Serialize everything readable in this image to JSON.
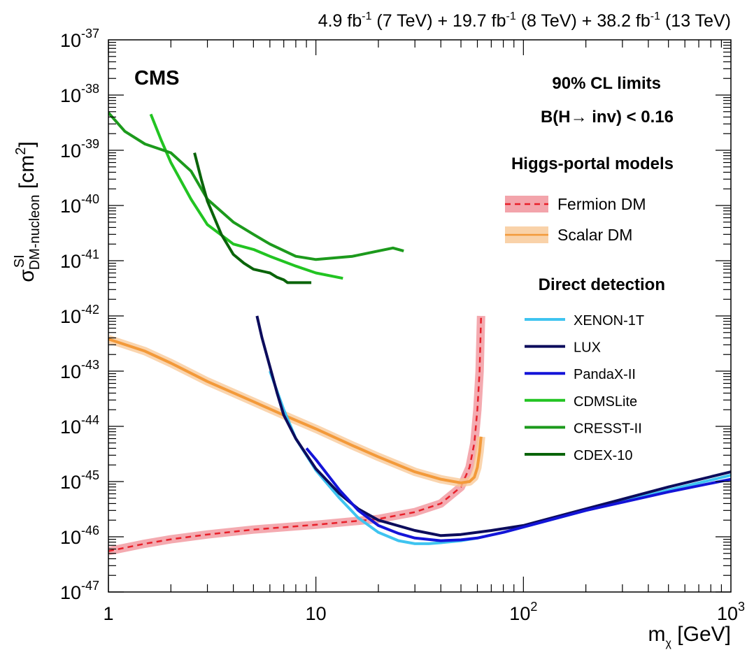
{
  "header": {
    "lumi_parts": [
      "4.9 fb",
      "-1",
      " (7 TeV) + 19.7 fb",
      "-1",
      " (8 TeV) + 38.2 fb",
      "-1",
      " (13 TeV)"
    ]
  },
  "labels": {
    "cms": "CMS",
    "cl": "90% CL limits",
    "br": "B(H→ inv) < 0.16",
    "higgs_header": "Higgs-portal models",
    "direct_header": "Direct detection"
  },
  "axes": {
    "x_label_main": "m",
    "x_label_sub": "χ",
    "x_label_unit": " [GeV]",
    "y_label_sigma": "σ",
    "y_label_sup": "SI",
    "y_label_sub": "DM-nucleon",
    "y_label_unit_pre": " [cm",
    "y_label_unit_exp": "2",
    "y_label_unit_post": "]",
    "x_ticks": [
      {
        "value": 1,
        "base": "1",
        "exp": ""
      },
      {
        "value": 10,
        "base": "10",
        "exp": ""
      },
      {
        "value": 100,
        "base": "10",
        "exp": "2"
      },
      {
        "value": 1000,
        "base": "10",
        "exp": "3"
      }
    ],
    "y_ticks": [
      {
        "exp": "-37"
      },
      {
        "exp": "-38"
      },
      {
        "exp": "-39"
      },
      {
        "exp": "-40"
      },
      {
        "exp": "-41"
      },
      {
        "exp": "-42"
      },
      {
        "exp": "-43"
      },
      {
        "exp": "-44"
      },
      {
        "exp": "-45"
      },
      {
        "exp": "-46"
      },
      {
        "exp": "-47"
      }
    ]
  },
  "colors": {
    "fermion": "#e8202a",
    "fermion_band": "#f08d96",
    "scalar": "#f39a3a",
    "scalar_band": "#f8c794",
    "xenon": "#3fc4f0",
    "lux": "#0c0c5c",
    "pandax": "#1414d8",
    "cdmslite": "#22c422",
    "cresst": "#1c9a1c",
    "cdex": "#0a640a"
  },
  "chart_data": {
    "type": "line",
    "x_scale": "log",
    "y_scale": "log",
    "xlim": [
      1,
      1000
    ],
    "ylim": [
      1e-47,
      1e-37
    ],
    "grid": false,
    "legend_position": "right",
    "series": [
      {
        "name": "Fermion DM",
        "group": "Higgs-portal models",
        "style": "dashed-band",
        "x": [
          1,
          1.5,
          2,
          3,
          5,
          10,
          20,
          30,
          40,
          50,
          55,
          58,
          60,
          61.5,
          62.5
        ],
        "y": [
          5.5e-47,
          7.5e-47,
          9e-47,
          1.1e-46,
          1.35e-46,
          1.65e-46,
          2.1e-46,
          2.8e-46,
          4e-46,
          8e-46,
          1.8e-45,
          5e-45,
          2e-44,
          1e-43,
          1e-42
        ]
      },
      {
        "name": "Scalar DM",
        "group": "Higgs-portal models",
        "style": "solid-band",
        "x": [
          1,
          1.5,
          2,
          3,
          5,
          7,
          10,
          15,
          20,
          30,
          40,
          50,
          55,
          58,
          60,
          61.5,
          62.5
        ],
        "y": [
          3.8e-43,
          2.3e-43,
          1.4e-43,
          6.5e-44,
          2.8e-44,
          1.6e-44,
          9e-45,
          4.5e-45,
          2.8e-45,
          1.5e-45,
          1.1e-45,
          9.5e-46,
          1e-45,
          1.2e-45,
          1.8e-45,
          3.5e-45,
          6.5e-45
        ]
      },
      {
        "name": "XENON-1T",
        "group": "Direct detection",
        "x": [
          6,
          7,
          8,
          10,
          13,
          16,
          20,
          25,
          30,
          35,
          40,
          50,
          60,
          80,
          100,
          200,
          500,
          1000
        ],
        "y": [
          1e-43,
          2e-44,
          6e-45,
          1.6e-45,
          5e-46,
          2.2e-46,
          1.2e-46,
          8.5e-47,
          7.5e-47,
          7.5e-47,
          7.8e-47,
          8.5e-47,
          9.5e-47,
          1.2e-46,
          1.5e-46,
          3e-46,
          7e-46,
          1.3e-45
        ]
      },
      {
        "name": "LUX",
        "group": "Direct detection",
        "x": [
          5.2,
          5.5,
          6,
          6.5,
          7,
          8,
          10,
          13,
          16,
          20,
          30,
          40,
          50,
          70,
          100,
          200,
          500,
          1000
        ],
        "y": [
          1e-42,
          4e-43,
          1.2e-43,
          4e-44,
          1.6e-44,
          6e-45,
          1.7e-45,
          6e-46,
          3.2e-46,
          2e-46,
          1.3e-46,
          1.05e-46,
          1.1e-46,
          1.3e-46,
          1.6e-46,
          3.2e-46,
          8e-46,
          1.5e-45
        ]
      },
      {
        "name": "PandaX-II",
        "group": "Direct detection",
        "x": [
          9,
          10,
          13,
          16,
          20,
          25,
          30,
          40,
          50,
          60,
          80,
          100,
          200,
          500,
          1000
        ],
        "y": [
          4e-45,
          2.5e-45,
          7e-46,
          3e-46,
          1.6e-46,
          1.15e-46,
          9.5e-47,
          8.5e-47,
          8.8e-47,
          9.5e-47,
          1.2e-46,
          1.5e-46,
          3e-46,
          6.5e-46,
          1.1e-45
        ]
      },
      {
        "name": "CDMSLite",
        "group": "Direct detection",
        "x": [
          1.6,
          1.8,
          2,
          2.5,
          3,
          4,
          5,
          6,
          8,
          10,
          13.5
        ],
        "y": [
          4.5e-39,
          1.5e-39,
          6e-40,
          1.3e-40,
          4.5e-41,
          2e-41,
          1.6e-41,
          1.2e-41,
          8e-42,
          6e-42,
          4.8e-42
        ]
      },
      {
        "name": "CRESST-II",
        "group": "Direct detection",
        "x": [
          1,
          1.2,
          1.5,
          2,
          2.5,
          3,
          4,
          5,
          6,
          8,
          10,
          15,
          20,
          23.5,
          26.5
        ],
        "y": [
          4.8e-39,
          2.2e-39,
          1.3e-39,
          9e-40,
          4.2e-40,
          1.3e-40,
          5e-41,
          3e-41,
          2e-41,
          1.2e-41,
          1.05e-41,
          1.2e-41,
          1.5e-41,
          1.7e-41,
          1.5e-41
        ]
      },
      {
        "name": "CDEX-10",
        "group": "Direct detection",
        "x": [
          2.6,
          2.8,
          3,
          3.5,
          4,
          4.5,
          5,
          6,
          6.5,
          7,
          7.3,
          8,
          9.5
        ],
        "y": [
          9e-40,
          3e-40,
          1.2e-40,
          3e-41,
          1.3e-41,
          9e-42,
          7e-42,
          6e-42,
          5e-42,
          4.5e-42,
          4e-42,
          4e-42,
          4e-42
        ]
      }
    ]
  }
}
